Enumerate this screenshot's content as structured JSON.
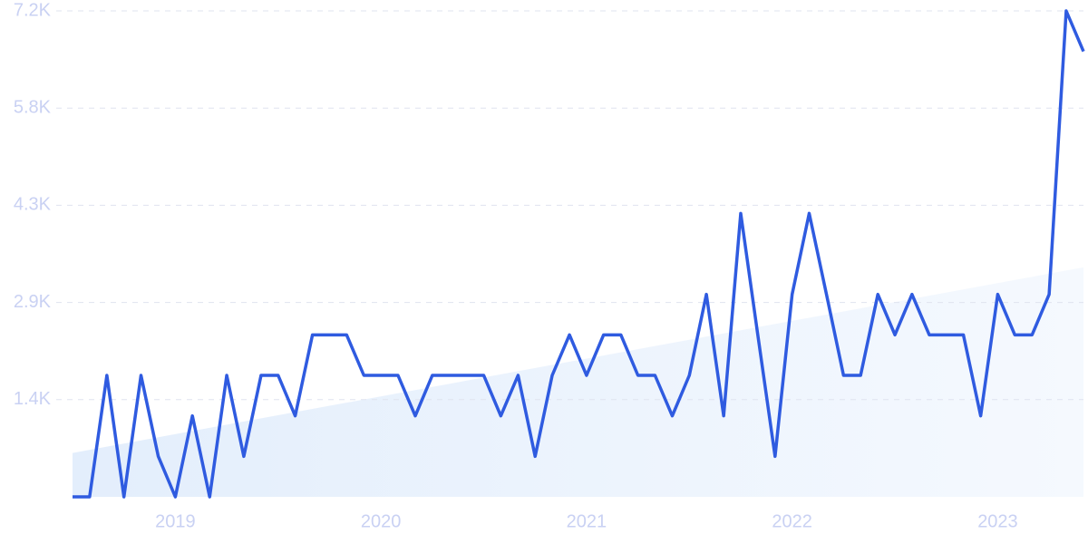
{
  "chart_data": {
    "type": "line",
    "x": [
      2018.5,
      2018.583,
      2018.667,
      2018.75,
      2018.833,
      2018.917,
      2019.0,
      2019.083,
      2019.167,
      2019.25,
      2019.333,
      2019.417,
      2019.5,
      2019.583,
      2019.667,
      2019.75,
      2019.833,
      2019.917,
      2020.0,
      2020.083,
      2020.167,
      2020.25,
      2020.333,
      2020.417,
      2020.5,
      2020.583,
      2020.667,
      2020.75,
      2020.833,
      2020.917,
      2021.0,
      2021.083,
      2021.167,
      2021.25,
      2021.333,
      2021.417,
      2021.5,
      2021.583,
      2021.667,
      2021.75,
      2021.833,
      2021.917,
      2022.0,
      2022.083,
      2022.167,
      2022.25,
      2022.333,
      2022.417,
      2022.5,
      2022.583,
      2022.667,
      2022.75,
      2022.833,
      2022.917,
      2023.0,
      2023.083,
      2023.167,
      2023.25,
      2023.333,
      2023.417
    ],
    "series": [
      {
        "color": "#2f5be0",
        "values": [
          0,
          0,
          1800,
          0,
          1800,
          600,
          0,
          1200,
          0,
          1800,
          600,
          1800,
          1800,
          1200,
          2400,
          2400,
          2400,
          1800,
          1800,
          1800,
          1200,
          1800,
          1800,
          1800,
          1800,
          1200,
          1800,
          600,
          1800,
          2400,
          1800,
          2400,
          2400,
          1800,
          1800,
          1200,
          1800,
          3000,
          1200,
          4200,
          2400,
          600,
          3000,
          4200,
          3000,
          1800,
          1800,
          3000,
          2400,
          3000,
          2400,
          2400,
          2400,
          1200,
          3000,
          2400,
          2400,
          3000,
          7200,
          6600
        ]
      }
    ],
    "trend": {
      "color": "#e3eefc",
      "values": [
        650,
        3400
      ]
    },
    "xlim": [
      2018.5,
      2023.417
    ],
    "xticks": [
      2019,
      2020,
      2021,
      2022,
      2023
    ],
    "ylim": [
      0,
      7200
    ],
    "yticks": [
      {
        "value": 1440,
        "label": "1.4K"
      },
      {
        "value": 2880,
        "label": "2.9K"
      },
      {
        "value": 4320,
        "label": "4.3K"
      },
      {
        "value": 5760,
        "label": "5.8K"
      },
      {
        "value": 7200,
        "label": "7.2K"
      }
    ],
    "grid": true
  }
}
